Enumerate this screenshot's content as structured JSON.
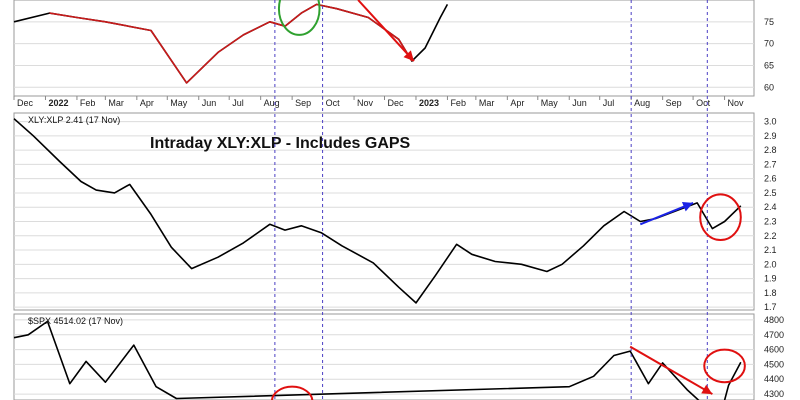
{
  "chart_data": [
    {
      "type": "line",
      "panel": "top",
      "title": "",
      "x_start": "2021-12",
      "x_end": "2023-11",
      "x_tick_labels": [
        "Dec",
        "2022",
        "Feb",
        "Mar",
        "Apr",
        "May",
        "Jun",
        "Jul",
        "Aug",
        "Sep",
        "Oct",
        "Nov",
        "Dec",
        "2023",
        "Feb",
        "Mar",
        "Apr",
        "May",
        "Jun",
        "Jul",
        "Aug",
        "Sep",
        "Oct",
        "Nov"
      ],
      "y_tick_labels": [
        "75",
        "70",
        "65",
        "60"
      ],
      "ylim": [
        58,
        80
      ],
      "series": [
        {
          "color": "#000000",
          "points": [
            [
              "2021-12-01",
              75
            ],
            [
              "2022-01-05",
              77
            ],
            [
              "2022-02-01",
              76
            ],
            [
              "2022-03-01",
              75
            ],
            [
              "2022-04-15",
              73
            ],
            [
              "2022-05-20",
              61
            ],
            [
              "2022-06-20",
              68
            ],
            [
              "2022-07-15",
              72
            ],
            [
              "2022-08-10",
              75
            ],
            [
              "2022-08-25",
              74
            ],
            [
              "2022-09-10",
              77
            ],
            [
              "2022-09-25",
              79
            ],
            [
              "2022-10-15",
              78
            ],
            [
              "2022-11-15",
              76
            ],
            [
              "2022-12-15",
              71
            ],
            [
              "2022-12-28",
              66
            ],
            [
              "2023-01-10",
              69
            ],
            [
              "2023-01-25",
              76
            ],
            [
              "2023-02-01",
              79
            ]
          ]
        }
      ],
      "annotations": [
        {
          "kind": "circle",
          "color": "#2fa12f",
          "center": [
            "2022-09-08",
            78
          ],
          "rx_days": 20,
          "ry": 6
        },
        {
          "kind": "arrow",
          "color": "#e01010",
          "from": [
            "2022-11-05",
            80
          ],
          "to": [
            "2022-12-30",
            66
          ]
        }
      ]
    },
    {
      "type": "line",
      "panel": "middle",
      "title": "Intraday XLY:XLP - Includes GAPS",
      "label": "XLY:XLP 2.41 (17 Nov)",
      "x_start": "2021-12",
      "x_end": "2023-11",
      "y_tick_labels": [
        "3.0",
        "2.9",
        "2.8",
        "2.7",
        "2.6",
        "2.5",
        "2.4",
        "2.3",
        "2.2",
        "2.1",
        "2.0",
        "1.9",
        "1.8",
        "1.7"
      ],
      "ylim": [
        1.68,
        3.06
      ],
      "series": [
        {
          "color": "#000000",
          "points": [
            [
              "2021-12-01",
              3.02
            ],
            [
              "2021-12-20",
              2.9
            ],
            [
              "2022-01-15",
              2.72
            ],
            [
              "2022-02-05",
              2.58
            ],
            [
              "2022-02-20",
              2.52
            ],
            [
              "2022-03-10",
              2.5
            ],
            [
              "2022-03-25",
              2.56
            ],
            [
              "2022-04-15",
              2.35
            ],
            [
              "2022-05-05",
              2.12
            ],
            [
              "2022-05-25",
              1.97
            ],
            [
              "2022-06-20",
              2.05
            ],
            [
              "2022-07-15",
              2.15
            ],
            [
              "2022-08-10",
              2.28
            ],
            [
              "2022-08-25",
              2.24
            ],
            [
              "2022-09-10",
              2.27
            ],
            [
              "2022-09-30",
              2.22
            ],
            [
              "2022-10-20",
              2.13
            ],
            [
              "2022-11-20",
              2.01
            ],
            [
              "2022-12-15",
              1.84
            ],
            [
              "2023-01-01",
              1.73
            ],
            [
              "2023-01-20",
              1.92
            ],
            [
              "2023-02-10",
              2.14
            ],
            [
              "2023-02-25",
              2.07
            ],
            [
              "2023-03-20",
              2.02
            ],
            [
              "2023-04-15",
              2.0
            ],
            [
              "2023-05-10",
              1.95
            ],
            [
              "2023-05-25",
              2.0
            ],
            [
              "2023-06-15",
              2.13
            ],
            [
              "2023-07-05",
              2.27
            ],
            [
              "2023-07-25",
              2.37
            ],
            [
              "2023-08-10",
              2.3
            ],
            [
              "2023-08-25",
              2.32
            ],
            [
              "2023-09-20",
              2.39
            ],
            [
              "2023-10-05",
              2.43
            ],
            [
              "2023-10-20",
              2.25
            ],
            [
              "2023-11-01",
              2.3
            ],
            [
              "2023-11-17",
              2.41
            ]
          ]
        }
      ],
      "annotations": [
        {
          "kind": "arrow",
          "color": "#1a23e6",
          "from": [
            "2023-08-10",
            2.28
          ],
          "to": [
            "2023-10-01",
            2.43
          ]
        },
        {
          "kind": "circle",
          "color": "#e01010",
          "center": [
            "2023-10-28",
            2.33
          ],
          "rx_days": 20,
          "ry": 0.16
        }
      ]
    },
    {
      "type": "line",
      "panel": "bottom",
      "title": "",
      "label": "$SPX 4514.02 (17 Nov)",
      "x_start": "2021-12",
      "x_end": "2023-11",
      "y_tick_labels": [
        "4800",
        "4700",
        "4600",
        "4500",
        "4400",
        "4300"
      ],
      "ylim": [
        4260,
        4840
      ],
      "series": [
        {
          "color": "#000000",
          "points": [
            [
              "2021-12-01",
              4680
            ],
            [
              "2021-12-15",
              4700
            ],
            [
              "2022-01-03",
              4790
            ],
            [
              "2022-01-25",
              4370
            ],
            [
              "2022-02-10",
              4520
            ],
            [
              "2022-03-01",
              4380
            ],
            [
              "2022-03-29",
              4630
            ],
            [
              "2022-04-20",
              4350
            ],
            [
              "2022-05-10",
              4270
            ],
            [
              "2023-06-01",
              4350
            ],
            [
              "2023-06-25",
              4420
            ],
            [
              "2023-07-15",
              4560
            ],
            [
              "2023-07-31",
              4590
            ],
            [
              "2023-08-18",
              4370
            ],
            [
              "2023-09-01",
              4510
            ],
            [
              "2023-09-25",
              4330
            ],
            [
              "2023-10-27",
              4130
            ],
            [
              "2023-11-05",
              4360
            ],
            [
              "2023-11-17",
              4514
            ]
          ]
        }
      ],
      "annotations": [
        {
          "kind": "circle",
          "color": "#e01010",
          "center": [
            "2022-09-01",
            4250
          ],
          "rx_days": 20,
          "ry": 100
        },
        {
          "kind": "arrow",
          "color": "#e01010",
          "from": [
            "2023-07-31",
            4620
          ],
          "to": [
            "2023-10-20",
            4300
          ]
        },
        {
          "kind": "circle",
          "color": "#e01010",
          "center": [
            "2023-11-01",
            4490
          ],
          "rx_days": 20,
          "ry": 110
        }
      ]
    }
  ],
  "vertical_markers": [
    "2022-08-15",
    "2022-10-01",
    "2023-08-01",
    "2023-10-15"
  ]
}
